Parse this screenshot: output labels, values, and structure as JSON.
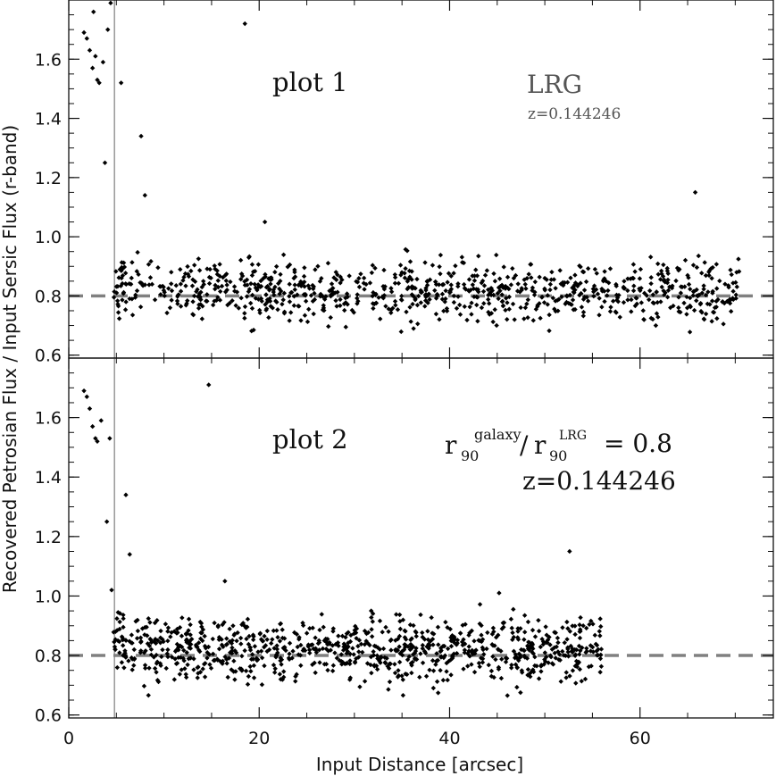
{
  "chart_data": [
    {
      "type": "scatter",
      "panel_label": "plot 1",
      "annotations": [
        "LRG",
        "z=0.144246"
      ],
      "xlabel": "Input Distance [arcsec]",
      "ylabel": "Recovered Petrosian Flux / Input Sersic Flux (r-band)",
      "xlim": [
        0,
        74
      ],
      "ylim": [
        0.59,
        1.8
      ],
      "x_ticks": [
        0,
        20,
        40,
        60
      ],
      "y_ticks": [
        0.6,
        0.8,
        1.0,
        1.2,
        1.4,
        1.6
      ],
      "y_tick_labels": [
        "0.6",
        "0.8",
        "1.0",
        "1.2",
        "1.4",
        "1.6"
      ],
      "reference_line": {
        "y": 0.8,
        "style": "dashed",
        "color": "#808080"
      },
      "vertical_line": {
        "x": 4.8,
        "color": "#808080"
      },
      "series": [
        {
          "x_range": [
            1.5,
            70.5
          ],
          "outliers": [
            [
              1.6,
              1.69
            ],
            [
              1.9,
              1.67
            ],
            [
              2.2,
              1.63
            ],
            [
              2.5,
              1.57
            ],
            [
              2.8,
              1.61
            ],
            [
              3.0,
              1.53
            ],
            [
              3.2,
              1.52
            ],
            [
              3.6,
              1.59
            ],
            [
              2.6,
              1.76
            ],
            [
              3.8,
              1.25
            ],
            [
              4.1,
              1.7
            ],
            [
              4.4,
              1.79
            ],
            [
              3.1,
              1.8
            ],
            [
              5.5,
              1.52
            ],
            [
              7.6,
              1.34
            ],
            [
              8.0,
              1.14
            ],
            [
              18.5,
              1.72
            ],
            [
              20.6,
              1.05
            ],
            [
              65.8,
              1.15
            ]
          ]
        }
      ]
    },
    {
      "type": "scatter",
      "panel_label": "plot 2",
      "annotation_ratio": {
        "numerator_sub": "90",
        "numerator_sup": "galaxy",
        "denominator_sub": "90",
        "denominator_sup": "LRG",
        "base": "r",
        "value": "= 0.8"
      },
      "annotations": [
        "z=0.144246"
      ],
      "xlim": [
        0,
        74
      ],
      "ylim": [
        0.59,
        1.8
      ],
      "x_ticks": [
        0,
        20,
        40,
        60
      ],
      "x_tick_labels": [
        "0",
        "20",
        "40",
        "60"
      ],
      "y_ticks": [
        0.6,
        0.8,
        1.0,
        1.2,
        1.4,
        1.6
      ],
      "y_tick_labels": [
        "0.6",
        "0.8",
        "1.0",
        "1.2",
        "1.4",
        "1.6"
      ],
      "reference_line": {
        "y": 0.8,
        "style": "dashed",
        "color": "#808080"
      },
      "vertical_line": {
        "x": 4.8,
        "color": "#808080"
      },
      "series": [
        {
          "x_range": [
            1.5,
            56.0
          ],
          "outliers": [
            [
              1.6,
              1.69
            ],
            [
              1.9,
              1.67
            ],
            [
              2.2,
              1.63
            ],
            [
              2.5,
              1.57
            ],
            [
              2.8,
              1.53
            ],
            [
              3.0,
              1.52
            ],
            [
              3.4,
              1.59
            ],
            [
              4.0,
              1.25
            ],
            [
              4.3,
              1.53
            ],
            [
              4.5,
              1.02
            ],
            [
              6.0,
              1.34
            ],
            [
              6.4,
              1.14
            ],
            [
              14.7,
              1.71
            ],
            [
              16.4,
              1.05
            ],
            [
              45.2,
              1.01
            ],
            [
              52.6,
              1.15
            ]
          ]
        }
      ]
    }
  ]
}
